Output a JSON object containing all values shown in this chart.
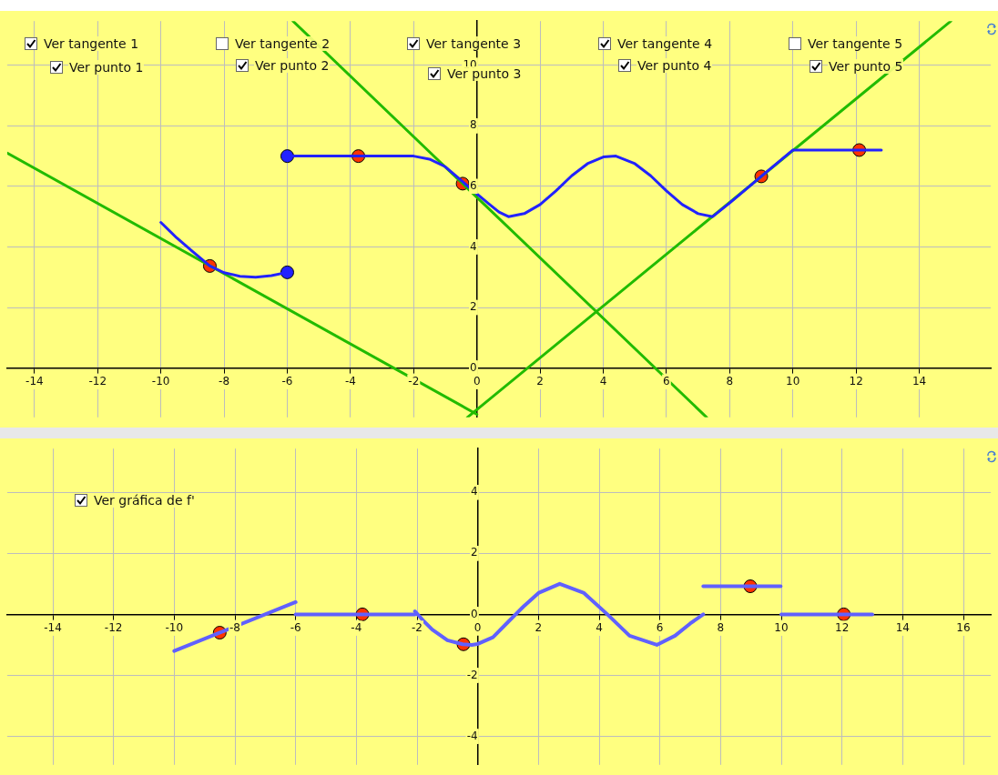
{
  "chart_data": [
    {
      "type": "line",
      "xlim": [
        -14.86,
        16.26
      ],
      "ylim": [
        -1.63,
        11.46
      ],
      "xticks": [
        -14,
        -12,
        -10,
        -8,
        -6,
        -4,
        -2,
        0,
        2,
        4,
        6,
        8,
        10,
        12,
        14
      ],
      "yticks": [
        0,
        2,
        4,
        6,
        8,
        10
      ],
      "grid": true,
      "annotations": [
        "Ver tangente 1",
        "Ver punto 1",
        "Ver tangente 2",
        "Ver punto 2",
        "Ver tangente 3",
        "Ver punto 3",
        "Ver tangente 4",
        "Ver punto 4",
        "Ver tangente 5",
        "Ver punto 5"
      ],
      "series": [
        {
          "type": "line",
          "color": "#2222ff",
          "x": [
            -10,
            -9.5,
            -9,
            -8.45,
            -8,
            -7.5,
            -7,
            -6.5,
            -6
          ],
          "values": [
            4.81,
            4.3,
            3.85,
            3.37,
            3.15,
            3.03,
            3.0,
            3.05,
            3.16
          ]
        },
        {
          "type": "line",
          "color": "#2222ff",
          "x": [
            -6,
            -3.75,
            -2,
            -1.5,
            -1,
            -0.5,
            0,
            0.37,
            0.7,
            1,
            1.5,
            2,
            2.5,
            3,
            3.5,
            4,
            4.4,
            5,
            5.5,
            6,
            6.5,
            7,
            7.46,
            8,
            9,
            10,
            11,
            12,
            12.8
          ],
          "values": [
            7,
            7,
            7,
            6.9,
            6.65,
            6.2,
            5.75,
            5.43,
            5.15,
            5.0,
            5.1,
            5.4,
            5.85,
            6.35,
            6.75,
            6.97,
            7.0,
            6.75,
            6.35,
            5.85,
            5.4,
            5.1,
            5.0,
            5.45,
            6.33,
            7.2,
            7.2,
            7.2,
            7.2
          ]
        },
        {
          "type": "line",
          "color": "#22bb00",
          "x": [
            -14.86,
            0
          ],
          "values": [
            7.1,
            -1.53
          ]
        },
        {
          "type": "line",
          "color": "#22bb00",
          "x": [
            -5.82,
            7.27
          ],
          "values": [
            11.46,
            -1.63
          ]
        },
        {
          "type": "line",
          "color": "#22bb00",
          "x": [
            -0.3,
            15.0
          ],
          "values": [
            -1.63,
            11.46
          ]
        },
        {
          "type": "scatter",
          "marker": "circle",
          "color": "#2222ff",
          "x": [
            -6,
            -6
          ],
          "values": [
            7,
            3.16
          ]
        },
        {
          "type": "scatter",
          "marker": "circle",
          "color": "#ff3300",
          "x": [
            -8.45,
            -3.75,
            -0.45,
            9.0,
            12.1
          ],
          "values": [
            3.37,
            7,
            6.09,
            6.33,
            7.2
          ]
        }
      ]
    },
    {
      "type": "line",
      "xlim": [
        -15.5,
        16.9
      ],
      "ylim": [
        -4.93,
        5.43
      ],
      "xticks": [
        -14,
        -12,
        -10,
        -8,
        -6,
        -4,
        -2,
        0,
        2,
        4,
        6,
        8,
        10,
        12,
        14,
        16
      ],
      "yticks": [
        -4,
        -2,
        0,
        2,
        4
      ],
      "grid": true,
      "annotations": [
        "Ver gráfica de f'"
      ],
      "series": [
        {
          "type": "line",
          "color": "#6060ff",
          "x": [
            -10,
            -6
          ],
          "values": [
            -1.2,
            0.4
          ]
        },
        {
          "type": "line",
          "color": "#6060ff",
          "x": [
            -6,
            -2.07
          ],
          "values": [
            0,
            0
          ]
        },
        {
          "type": "line",
          "color": "#6060ff",
          "x": [
            -2.07,
            -1.8,
            -1.5,
            -1,
            -0.5,
            -0.2,
            0,
            0.5,
            1,
            1.25,
            1.5,
            2,
            2.7,
            3.5,
            4.27,
            5,
            5.9,
            6.5,
            7,
            7.43
          ],
          "values": [
            0.1,
            -0.2,
            -0.5,
            -0.85,
            -0.98,
            -1.0,
            -0.97,
            -0.75,
            -0.25,
            0,
            0.25,
            0.7,
            1.0,
            0.7,
            0,
            -0.7,
            -1.0,
            -0.7,
            -0.3,
            0
          ]
        },
        {
          "type": "line",
          "color": "#6060ff",
          "x": [
            7.43,
            9.98
          ],
          "values": [
            0.92,
            0.92
          ]
        },
        {
          "type": "line",
          "color": "#6060ff",
          "x": [
            10,
            13
          ],
          "values": [
            0,
            0
          ]
        },
        {
          "type": "scatter",
          "marker": "circle",
          "color": "#ff3300",
          "x": [
            -8.5,
            -3.8,
            -0.47,
            8.98,
            12.06
          ],
          "values": [
            -0.6,
            0,
            -0.98,
            0.92,
            0
          ]
        }
      ]
    }
  ]
}
